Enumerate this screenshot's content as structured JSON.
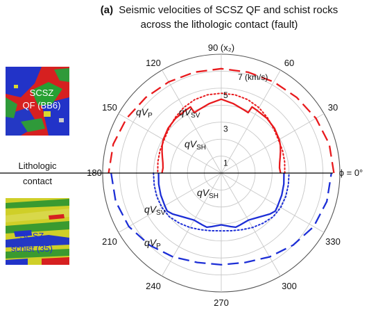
{
  "figure": {
    "panel_letter": "(a)",
    "title_line1": "Seismic velocities of SCSZ QF and schist rocks",
    "title_line2": "across the lithologic contact (fault)"
  },
  "side_panel": {
    "top_image_label_line1": "SCSZ",
    "top_image_label_line2": "QF (BB6)",
    "contact_label_line1": "Lithologic",
    "contact_label_line2": "contact",
    "bottom_image_label_line1": "SCSZ",
    "bottom_image_label_line2": "schist (35)",
    "top_image_icon": "mineral-phase-map-qf",
    "bottom_image_icon": "mineral-phase-map-schist"
  },
  "colors": {
    "qf": "#e8191c",
    "schist": "#1c2ed6",
    "grid": "#c8c8c8",
    "contact_line": "#000000"
  },
  "chart_data": {
    "type": "polar",
    "r_unit_label": "7 (km/s)",
    "r_ticks": [
      1,
      3,
      5
    ],
    "r_max": 7,
    "angle_tick_step": 30,
    "angle_labels": {
      "a0": "ϕ = 0°",
      "a30": "30",
      "a60": "60",
      "a90": "90 (x₂)",
      "a120": "120",
      "a150": "150",
      "a180": "180",
      "a210": "210",
      "a240": "240",
      "a270": "270",
      "a300": "300",
      "a330": "330"
    },
    "grid": true,
    "series": [
      {
        "name": "qVP",
        "group": "qf",
        "style": "dashed",
        "theta": [
          0,
          15,
          30,
          45,
          60,
          75,
          90,
          105,
          120,
          135,
          150,
          165,
          180
        ],
        "r": [
          6.65,
          6.6,
          6.45,
          6.3,
          6.2,
          6.15,
          6.15,
          6.15,
          6.2,
          6.3,
          6.45,
          6.6,
          6.65
        ]
      },
      {
        "name": "qVSV",
        "group": "qf",
        "style": "dotted",
        "theta": [
          0,
          10,
          20,
          30,
          40,
          50,
          60,
          70,
          80,
          90,
          100,
          110,
          120,
          130,
          140,
          150,
          160,
          170,
          180
        ],
        "r": [
          3.75,
          3.8,
          3.85,
          3.9,
          4.05,
          4.25,
          4.45,
          4.6,
          4.68,
          4.7,
          4.68,
          4.6,
          4.45,
          4.25,
          4.05,
          3.9,
          3.85,
          3.8,
          3.75
        ]
      },
      {
        "name": "qVSH",
        "group": "qf",
        "style": "solid",
        "theta": [
          0,
          5,
          10,
          15,
          20,
          25,
          30,
          40,
          50,
          60,
          65,
          66,
          70,
          80,
          90,
          100,
          110,
          114,
          115,
          120,
          130,
          140,
          150,
          155,
          160,
          165,
          170,
          175,
          180
        ],
        "r": [
          3.5,
          3.45,
          3.5,
          3.6,
          3.72,
          3.85,
          3.95,
          4.1,
          4.2,
          4.25,
          4.3,
          3.9,
          3.95,
          4.15,
          4.35,
          4.15,
          3.95,
          3.9,
          4.3,
          4.25,
          4.2,
          4.1,
          3.95,
          3.85,
          3.72,
          3.6,
          3.5,
          3.45,
          3.5
        ]
      },
      {
        "name": "qVP",
        "group": "schist",
        "style": "dashed",
        "theta": [
          180,
          195,
          210,
          225,
          240,
          255,
          270,
          285,
          300,
          315,
          330,
          345,
          360
        ],
        "r": [
          6.5,
          6.45,
          6.3,
          6.0,
          5.7,
          5.45,
          5.4,
          5.45,
          5.7,
          6.0,
          6.3,
          6.45,
          6.5
        ]
      },
      {
        "name": "qVSV",
        "group": "schist",
        "style": "dotted",
        "theta": [
          180,
          190,
          200,
          210,
          220,
          230,
          240,
          250,
          260,
          270,
          280,
          290,
          300,
          310,
          320,
          330,
          340,
          350,
          360
        ],
        "r": [
          4.0,
          4.02,
          4.05,
          4.05,
          4.0,
          3.85,
          3.7,
          3.55,
          3.45,
          3.4,
          3.45,
          3.55,
          3.7,
          3.85,
          4.0,
          4.05,
          4.05,
          4.02,
          4.0
        ]
      },
      {
        "name": "qVSH",
        "group": "schist",
        "style": "solid",
        "theta": [
          180,
          190,
          200,
          210,
          215,
          220,
          230,
          240,
          250,
          255,
          260,
          270,
          280,
          285,
          290,
          300,
          310,
          320,
          325,
          330,
          340,
          350,
          360
        ],
        "r": [
          3.7,
          3.75,
          3.8,
          3.85,
          3.9,
          3.75,
          3.4,
          3.2,
          3.25,
          3.3,
          3.2,
          3.05,
          3.2,
          3.3,
          3.25,
          3.2,
          3.4,
          3.75,
          3.9,
          3.85,
          3.8,
          3.75,
          3.7
        ]
      }
    ],
    "series_labels": {
      "qf_qVP": {
        "main": "qV",
        "sub": "P"
      },
      "qf_qVSV": {
        "main": "qV",
        "sub": "SV"
      },
      "qf_qVSH": {
        "main": "qV",
        "sub": "SH"
      },
      "schist_qVSH": {
        "main": "qV",
        "sub": "SH"
      },
      "schist_qVSV": {
        "main": "qV",
        "sub": "SV"
      },
      "schist_qVP": {
        "main": "qV",
        "sub": "P"
      }
    }
  }
}
